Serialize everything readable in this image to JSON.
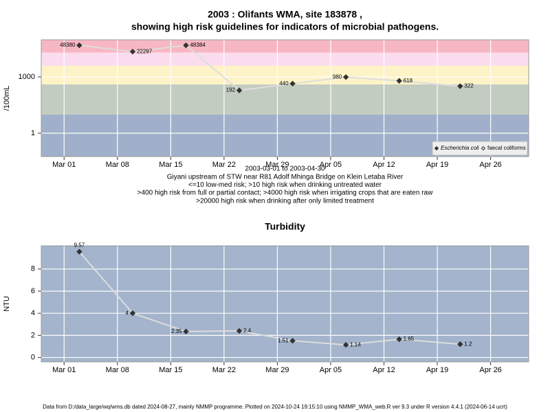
{
  "chart_data": [
    {
      "type": "line",
      "title_lines": [
        "2003 : Olifants WMA, site 183878 ,",
        "showing high risk guidelines for indicators of microbial pathogens."
      ],
      "ylabel": "/100mL",
      "log_y": true,
      "x": [
        "2003-03-03",
        "2003-03-10",
        "2003-03-17",
        "2003-03-24",
        "2003-03-31",
        "2003-04-07",
        "2003-04-14",
        "2003-04-22"
      ],
      "xlim": [
        "2003-02-26",
        "2003-05-01"
      ],
      "xticks": [
        {
          "value": "2003-03-01",
          "label": "Mar 01"
        },
        {
          "value": "2003-03-08",
          "label": "Mar 08"
        },
        {
          "value": "2003-03-15",
          "label": "Mar 15"
        },
        {
          "value": "2003-03-22",
          "label": "Mar 22"
        },
        {
          "value": "2003-03-29",
          "label": "Mar 29"
        },
        {
          "value": "2003-04-05",
          "label": "Apr 05"
        },
        {
          "value": "2003-04-12",
          "label": "Apr 12"
        },
        {
          "value": "2003-04-19",
          "label": "Apr 19"
        },
        {
          "value": "2003-04-26",
          "label": "Apr 26"
        }
      ],
      "ylim": [
        0.057,
        95000
      ],
      "yticks": [
        1,
        1000
      ],
      "grid": true,
      "line_color": "#dddddd",
      "risk_thresholds": [
        10,
        400,
        4000,
        20000
      ],
      "band_colors": [
        "#a0b0ca",
        "#c3ccc0",
        "#fdf3c6",
        "#fbdcee",
        "#f7b7c2"
      ],
      "legend": "bottom-right",
      "series": [
        {
          "name": "Escherichia coli",
          "color": "#333333",
          "marker": "filled-diamond",
          "values": [
            48380,
            22297,
            48384,
            192,
            440,
            980,
            618,
            322
          ]
        },
        {
          "name": "faecal coliforms",
          "color": "#333333",
          "marker": "open-diamond",
          "values": [
            null,
            null,
            null,
            null,
            null,
            null,
            null,
            null
          ]
        }
      ],
      "notes": [
        "2003-03-01 to 2003-04-30",
        "Giyani upstream of STW near R81 Adolf Mhinga Bridge on Klein Letaba River",
        "<=10 low-med risk; >10 high risk when drinking untreated water",
        ">400 high risk from full or partial contact; >4000 high risk when irrigating crops that are eaten raw",
        ">20000 high risk when drinking after only limited treatment"
      ]
    },
    {
      "type": "line",
      "title_lines": [
        "Turbidity"
      ],
      "ylabel": "NTU",
      "log_y": false,
      "x": [
        "2003-03-03",
        "2003-03-10",
        "2003-03-17",
        "2003-03-24",
        "2003-03-31",
        "2003-04-07",
        "2003-04-14",
        "2003-04-22"
      ],
      "xlim": [
        "2003-02-26",
        "2003-05-01"
      ],
      "xticks": [
        {
          "value": "2003-03-01",
          "label": "Mar 01"
        },
        {
          "value": "2003-03-08",
          "label": "Mar 08"
        },
        {
          "value": "2003-03-15",
          "label": "Mar 15"
        },
        {
          "value": "2003-03-22",
          "label": "Mar 22"
        },
        {
          "value": "2003-03-29",
          "label": "Mar 29"
        },
        {
          "value": "2003-04-05",
          "label": "Apr 05"
        },
        {
          "value": "2003-04-12",
          "label": "Apr 12"
        },
        {
          "value": "2003-04-19",
          "label": "Apr 19"
        },
        {
          "value": "2003-04-26",
          "label": "Apr 26"
        }
      ],
      "ylim": [
        -0.4,
        10.1
      ],
      "yticks": [
        0,
        2,
        4,
        6,
        8
      ],
      "grid": true,
      "line_color": "#dddddd",
      "background": "#a3b4cc",
      "series": [
        {
          "color": "#333333",
          "marker": "filled-diamond",
          "values": [
            9.57,
            4,
            2.35,
            2.4,
            1.51,
            1.14,
            1.65,
            1.2
          ]
        }
      ]
    }
  ],
  "footer": "Data from D:/data_large/wq/wms.db dated 2024-08-27, mainly NMMP programme. Plotted on 2024-10-24 19:15:10 using NMMP_WMA_web.R ver 9.3 under R version 4.4.1 (2024-06-14 ucrt)"
}
